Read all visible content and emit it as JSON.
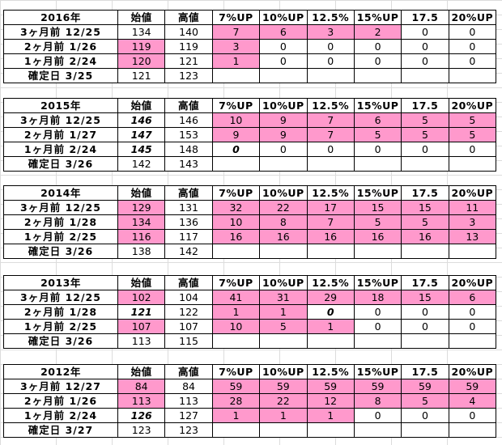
{
  "columns": [
    "始値",
    "高値",
    "7%UP",
    "10%UP",
    "12.5%",
    "15%UP",
    "17.5",
    "20%UP"
  ],
  "blocks": [
    {
      "title": "2016年",
      "rows": [
        {
          "label": "3ヶ月前 12/25",
          "cells": [
            {
              "v": "134"
            },
            {
              "v": "140"
            },
            {
              "v": "7",
              "pink": true
            },
            {
              "v": "6",
              "pink": true
            },
            {
              "v": "3",
              "pink": true
            },
            {
              "v": "2",
              "pink": true
            },
            {
              "v": "0"
            },
            {
              "v": "0"
            }
          ]
        },
        {
          "label": "2ヶ月前 1/26",
          "cells": [
            {
              "v": "119",
              "pink": true,
              "white": true
            },
            {
              "v": "119"
            },
            {
              "v": "3",
              "pink": true
            },
            {
              "v": "0"
            },
            {
              "v": "0"
            },
            {
              "v": "0"
            },
            {
              "v": "0"
            },
            {
              "v": "0"
            }
          ]
        },
        {
          "label": "1ヶ月前 2/24",
          "cells": [
            {
              "v": "120",
              "pink": true,
              "white": true
            },
            {
              "v": "121"
            },
            {
              "v": "1",
              "pink": true,
              "white": true
            },
            {
              "v": "0"
            },
            {
              "v": "0"
            },
            {
              "v": "0"
            },
            {
              "v": "0"
            },
            {
              "v": "0"
            }
          ]
        },
        {
          "label": "確定日 3/25",
          "cells": [
            {
              "v": "121"
            },
            {
              "v": "123"
            },
            {
              "v": ""
            },
            {
              "v": ""
            },
            {
              "v": ""
            },
            {
              "v": ""
            },
            {
              "v": ""
            },
            {
              "v": ""
            }
          ]
        }
      ]
    },
    {
      "title": "2015年",
      "rows": [
        {
          "label": "3ヶ月前 12/25",
          "cells": [
            {
              "v": "146",
              "gray": true
            },
            {
              "v": "146"
            },
            {
              "v": "10",
              "pink": true,
              "white": true
            },
            {
              "v": "9",
              "pink": true
            },
            {
              "v": "7",
              "pink": true
            },
            {
              "v": "6",
              "pink": true
            },
            {
              "v": "5",
              "pink": true
            },
            {
              "v": "5",
              "pink": true
            }
          ]
        },
        {
          "label": "2ヶ月前 1/27",
          "cells": [
            {
              "v": "147",
              "gray": true
            },
            {
              "v": "153"
            },
            {
              "v": "9",
              "pink": true,
              "white": true
            },
            {
              "v": "9",
              "pink": true
            },
            {
              "v": "7",
              "pink": true
            },
            {
              "v": "5",
              "pink": true
            },
            {
              "v": "5",
              "pink": true
            },
            {
              "v": "5",
              "pink": true
            }
          ]
        },
        {
          "label": "1ヶ月前 2/24",
          "cells": [
            {
              "v": "145",
              "gray": true
            },
            {
              "v": "148"
            },
            {
              "v": "0",
              "gray": true
            },
            {
              "v": "0"
            },
            {
              "v": "0"
            },
            {
              "v": "0"
            },
            {
              "v": "0"
            },
            {
              "v": "0"
            }
          ]
        },
        {
          "label": "確定日 3/26",
          "cells": [
            {
              "v": "142"
            },
            {
              "v": "143"
            },
            {
              "v": ""
            },
            {
              "v": ""
            },
            {
              "v": ""
            },
            {
              "v": ""
            },
            {
              "v": ""
            },
            {
              "v": ""
            }
          ]
        }
      ]
    },
    {
      "title": "2014年",
      "rows": [
        {
          "label": "3ヶ月前 12/25",
          "cells": [
            {
              "v": "129",
              "pink": true
            },
            {
              "v": "131"
            },
            {
              "v": "32",
              "pink": true
            },
            {
              "v": "22",
              "pink": true
            },
            {
              "v": "17",
              "pink": true
            },
            {
              "v": "15",
              "pink": true
            },
            {
              "v": "15",
              "pink": true
            },
            {
              "v": "11",
              "pink": true
            }
          ]
        },
        {
          "label": "2ヶ月前 1/28",
          "cells": [
            {
              "v": "134",
              "pink": true
            },
            {
              "v": "136"
            },
            {
              "v": "10",
              "pink": true
            },
            {
              "v": "8",
              "pink": true
            },
            {
              "v": "7",
              "pink": true
            },
            {
              "v": "5",
              "pink": true
            },
            {
              "v": "5",
              "pink": true
            },
            {
              "v": "3",
              "pink": true
            }
          ]
        },
        {
          "label": "1ヶ月前 2/25",
          "cells": [
            {
              "v": "116",
              "pink": true
            },
            {
              "v": "117"
            },
            {
              "v": "16",
              "pink": true
            },
            {
              "v": "16",
              "pink": true
            },
            {
              "v": "16",
              "pink": true
            },
            {
              "v": "16",
              "pink": true
            },
            {
              "v": "16",
              "pink": true
            },
            {
              "v": "13",
              "pink": true
            }
          ]
        },
        {
          "label": "確定日 3/26",
          "cells": [
            {
              "v": "138"
            },
            {
              "v": "142"
            },
            {
              "v": ""
            },
            {
              "v": ""
            },
            {
              "v": ""
            },
            {
              "v": ""
            },
            {
              "v": ""
            },
            {
              "v": ""
            }
          ]
        }
      ]
    },
    {
      "title": "2013年",
      "rows": [
        {
          "label": "3ヶ月前 12/25",
          "cells": [
            {
              "v": "102",
              "pink": true,
              "white": true
            },
            {
              "v": "104"
            },
            {
              "v": "41",
              "pink": true,
              "white": true
            },
            {
              "v": "31",
              "pink": true,
              "white": true
            },
            {
              "v": "29",
              "pink": true,
              "white": true
            },
            {
              "v": "18",
              "pink": true,
              "white": true
            },
            {
              "v": "15",
              "pink": true,
              "white": true
            },
            {
              "v": "6",
              "pink": true,
              "white": true
            }
          ]
        },
        {
          "label": "2ヶ月前 1/28",
          "cells": [
            {
              "v": "121",
              "gray": true
            },
            {
              "v": "122"
            },
            {
              "v": "1",
              "pink": true,
              "white": true
            },
            {
              "v": "1",
              "pink": true,
              "white": true
            },
            {
              "v": "0",
              "gray": true
            },
            {
              "v": "0"
            },
            {
              "v": "0"
            },
            {
              "v": "0"
            }
          ]
        },
        {
          "label": "1ヶ月前 2/25",
          "cells": [
            {
              "v": "107",
              "pink": true
            },
            {
              "v": "107"
            },
            {
              "v": "10",
              "pink": true,
              "white": true
            },
            {
              "v": "5",
              "pink": true
            },
            {
              "v": "1",
              "pink": true
            },
            {
              "v": "0"
            },
            {
              "v": "0"
            },
            {
              "v": "0"
            }
          ]
        },
        {
          "label": "確定日 3/26",
          "cells": [
            {
              "v": "113"
            },
            {
              "v": "115"
            },
            {
              "v": ""
            },
            {
              "v": ""
            },
            {
              "v": ""
            },
            {
              "v": ""
            },
            {
              "v": ""
            },
            {
              "v": ""
            }
          ]
        }
      ]
    },
    {
      "title": "2012年",
      "rows": [
        {
          "label": "3ヶ月前 12/27",
          "cells": [
            {
              "v": "84",
              "pink": true,
              "white": true
            },
            {
              "v": "84"
            },
            {
              "v": "59",
              "pink": true,
              "white": true
            },
            {
              "v": "59",
              "pink": true,
              "white": true
            },
            {
              "v": "59",
              "pink": true,
              "white": true
            },
            {
              "v": "59",
              "pink": true,
              "white": true
            },
            {
              "v": "59",
              "pink": true,
              "white": true
            },
            {
              "v": "59",
              "pink": true,
              "white": true
            }
          ]
        },
        {
          "label": "2ヶ月前 1/26",
          "cells": [
            {
              "v": "113",
              "pink": true,
              "white": true
            },
            {
              "v": "113"
            },
            {
              "v": "28",
              "pink": true,
              "white": true
            },
            {
              "v": "22",
              "pink": true,
              "white": true
            },
            {
              "v": "12",
              "pink": true,
              "white": true
            },
            {
              "v": "8",
              "pink": true
            },
            {
              "v": "5",
              "pink": true
            },
            {
              "v": "4",
              "pink": true
            }
          ]
        },
        {
          "label": "1ヶ月前 2/24",
          "cells": [
            {
              "v": "126",
              "gray": true
            },
            {
              "v": "127"
            },
            {
              "v": "1",
              "pink": true
            },
            {
              "v": "1",
              "pink": true
            },
            {
              "v": "1",
              "pink": true
            },
            {
              "v": "0"
            },
            {
              "v": "0"
            },
            {
              "v": "0"
            }
          ]
        },
        {
          "label": "確定日 3/27",
          "cells": [
            {
              "v": "123"
            },
            {
              "v": "123"
            },
            {
              "v": ""
            },
            {
              "v": ""
            },
            {
              "v": ""
            },
            {
              "v": ""
            },
            {
              "v": ""
            },
            {
              "v": ""
            }
          ]
        }
      ]
    }
  ]
}
